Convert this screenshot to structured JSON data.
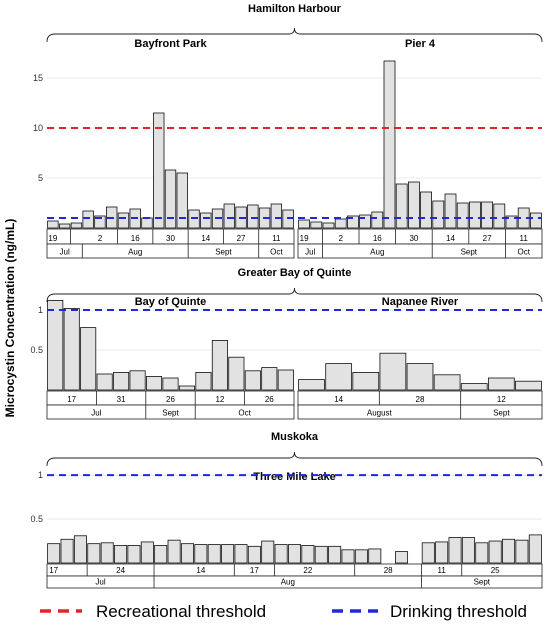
{
  "y_axis_label": "Microcystin Concentration (ng/mL)",
  "thresholds": {
    "recreational": {
      "label": "Recreational threshold",
      "value": 10,
      "color": "#e3232a"
    },
    "drinking": {
      "label": "Drinking threshold",
      "value": 1,
      "color": "#1f2ad6"
    }
  },
  "chart_data": [
    {
      "type": "bar",
      "region": "Hamilton Harbour",
      "ylim": [
        0,
        17
      ],
      "yticks": [
        5,
        10,
        15
      ],
      "panels": [
        {
          "title": "Bayfront Park",
          "values": [
            0.7,
            0.4,
            0.5,
            1.7,
            1.2,
            2.1,
            1.5,
            1.9,
            1.0,
            11.5,
            5.8,
            5.5,
            1.8,
            1.5,
            1.9,
            2.4,
            2.1,
            2.3,
            2.0,
            2.4,
            1.8
          ],
          "day_labels": [
            {
              "text": "19",
              "bar": 0
            },
            {
              "text": "2",
              "bar": 4
            },
            {
              "text": "16",
              "bar": 7
            },
            {
              "text": "30",
              "bar": 10
            },
            {
              "text": "14",
              "bar": 13
            },
            {
              "text": "27",
              "bar": 16
            },
            {
              "text": "11",
              "bar": 19
            }
          ],
          "day_dividers": [
            2,
            6,
            9,
            12,
            15,
            18
          ],
          "months": [
            {
              "text": "Jul",
              "from": 0,
              "to": 3
            },
            {
              "text": "Aug",
              "from": 3,
              "to": 12
            },
            {
              "text": "Sept",
              "from": 12,
              "to": 18
            },
            {
              "text": "Oct",
              "from": 18,
              "to": 21
            }
          ]
        },
        {
          "title": "Pier 4",
          "values": [
            0.8,
            0.6,
            0.5,
            0.9,
            1.2,
            1.3,
            1.6,
            16.7,
            4.4,
            4.6,
            3.6,
            2.7,
            3.4,
            2.5,
            2.6,
            2.6,
            2.4,
            1.2,
            2.0,
            1.5
          ],
          "day_labels": [
            {
              "text": "19",
              "bar": 0
            },
            {
              "text": "2",
              "bar": 3
            },
            {
              "text": "16",
              "bar": 6
            },
            {
              "text": "30",
              "bar": 9
            },
            {
              "text": "14",
              "bar": 12
            },
            {
              "text": "27",
              "bar": 15
            },
            {
              "text": "11",
              "bar": 18
            }
          ],
          "day_dividers": [
            2,
            5,
            8,
            11,
            14,
            17
          ],
          "months": [
            {
              "text": "Jul",
              "from": 0,
              "to": 2
            },
            {
              "text": "Aug",
              "from": 2,
              "to": 11
            },
            {
              "text": "Sept",
              "from": 11,
              "to": 17
            },
            {
              "text": "Oct",
              "from": 17,
              "to": 20
            }
          ]
        }
      ]
    },
    {
      "type": "bar",
      "region": "Greater Bay of Quinte",
      "ylim": [
        0,
        1.15
      ],
      "yticks": [
        0.5,
        1
      ],
      "panels": [
        {
          "title": "Bay of Quinte",
          "values": [
            1.12,
            1.02,
            0.78,
            0.2,
            0.22,
            0.24,
            0.17,
            0.15,
            0.05,
            0.22,
            0.62,
            0.41,
            0.24,
            0.28,
            0.25
          ],
          "day_labels": [
            {
              "text": "17",
              "bar": 1
            },
            {
              "text": "31",
              "bar": 4
            },
            {
              "text": "26",
              "bar": 7
            },
            {
              "text": "12",
              "bar": 10
            },
            {
              "text": "26",
              "bar": 13
            }
          ],
          "day_dividers": [
            3,
            6,
            9,
            12
          ],
          "months": [
            {
              "text": "Jul",
              "from": 0,
              "to": 6
            },
            {
              "text": "Sept",
              "from": 6,
              "to": 9
            },
            {
              "text": "Oct",
              "from": 9,
              "to": 15
            }
          ]
        },
        {
          "title": "Napanee River",
          "values": [
            0.13,
            0.33,
            0.22,
            0.46,
            0.33,
            0.19,
            0.08,
            0.15,
            0.11
          ],
          "day_labels": [
            {
              "text": "14",
              "bar": 1
            },
            {
              "text": "28",
              "bar": 4
            },
            {
              "text": "12",
              "bar": 7
            }
          ],
          "day_dividers": [
            3,
            6
          ],
          "months": [
            {
              "text": "August",
              "from": 0,
              "to": 6
            },
            {
              "text": "Sept",
              "from": 6,
              "to": 9
            }
          ]
        }
      ]
    },
    {
      "type": "bar",
      "region": "Muskoka",
      "ylim": [
        0,
        1.15
      ],
      "yticks": [
        0.5,
        1
      ],
      "panels": [
        {
          "title": "Three Mile Lake",
          "values": [
            0.22,
            0.27,
            0.31,
            0.22,
            0.23,
            0.2,
            0.2,
            0.24,
            0.2,
            0.26,
            0.22,
            0.21,
            0.21,
            0.21,
            0.21,
            0.19,
            0.25,
            0.21,
            0.21,
            0.2,
            0.19,
            0.19,
            0.15,
            0.15,
            0.16,
            0.0,
            0.13,
            0.0,
            0.23,
            0.24,
            0.29,
            0.29,
            0.23,
            0.25,
            0.27,
            0.26,
            0.32
          ],
          "day_labels": [
            {
              "text": "17",
              "bar": 0
            },
            {
              "text": "24",
              "bar": 5
            },
            {
              "text": "14",
              "bar": 11
            },
            {
              "text": "17",
              "bar": 15
            },
            {
              "text": "22",
              "bar": 19
            },
            {
              "text": "28",
              "bar": 25
            },
            {
              "text": "11",
              "bar": 29
            },
            {
              "text": "25",
              "bar": 33
            }
          ],
          "day_dividers": [
            3,
            8,
            14,
            17,
            23,
            28,
            31
          ],
          "months": [
            {
              "text": "Jul",
              "from": 0,
              "to": 8
            },
            {
              "text": "Aug",
              "from": 8,
              "to": 28
            },
            {
              "text": "Sept",
              "from": 28,
              "to": 37
            }
          ]
        }
      ]
    }
  ]
}
